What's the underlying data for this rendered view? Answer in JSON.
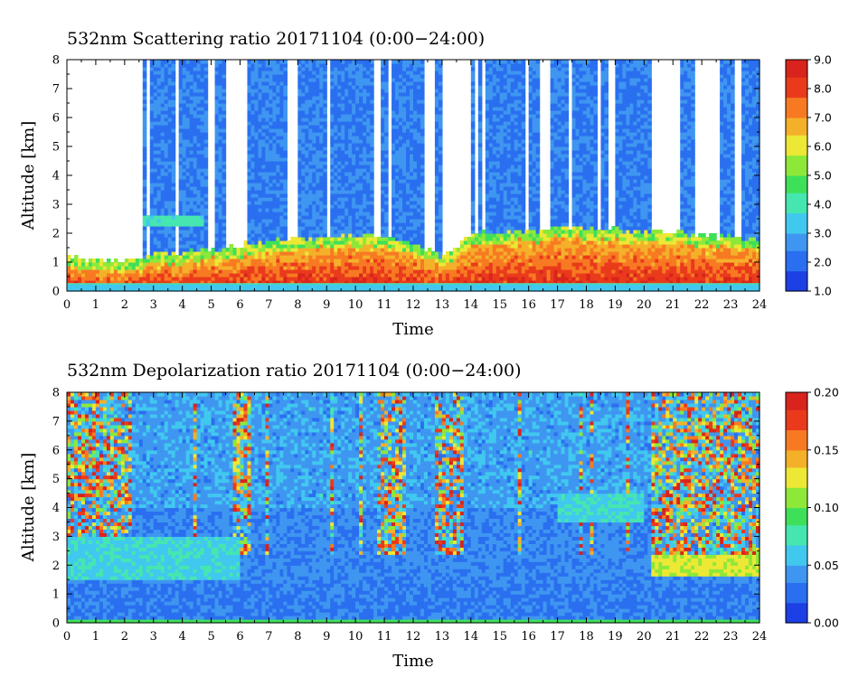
{
  "colors": {
    "background": "#ffffff",
    "frame": "#000000",
    "colormap": [
      "#1c3fe6",
      "#2a6ff0",
      "#3f96f0",
      "#41c8ef",
      "#46e6b0",
      "#3ee05a",
      "#8ee83a",
      "#ece835",
      "#f5b02a",
      "#f77a22",
      "#ea3a1c",
      "#d8241c"
    ]
  },
  "chart_data": [
    {
      "type": "heatmap",
      "title": "532nm Scattering ratio  20171104 (0:00−24:00)",
      "xlabel": "Time",
      "ylabel": "Altitude [km]",
      "xlim": [
        0,
        24
      ],
      "ylim": [
        0,
        8
      ],
      "x_ticks": [
        "0",
        "1",
        "2",
        "3",
        "4",
        "5",
        "6",
        "7",
        "8",
        "9",
        "10",
        "11",
        "12",
        "13",
        "14",
        "15",
        "16",
        "17",
        "18",
        "19",
        "20",
        "21",
        "22",
        "23",
        "24"
      ],
      "y_ticks": [
        "0",
        "1",
        "2",
        "3",
        "4",
        "5",
        "6",
        "7",
        "8"
      ],
      "colorbar": {
        "range": [
          1.0,
          9.0
        ],
        "ticks": [
          "1.0",
          "2.0",
          "3.0",
          "4.0",
          "5.0",
          "6.0",
          "7.0",
          "8.0",
          "9.0"
        ]
      },
      "features": {
        "boundary_layer_top_km": [
          [
            0,
            0.9
          ],
          [
            1,
            0.7
          ],
          [
            2,
            0.65
          ],
          [
            3,
            0.9
          ],
          [
            4,
            1.0
          ],
          [
            5,
            1.1
          ],
          [
            6,
            1.25
          ],
          [
            7,
            1.35
          ],
          [
            8,
            1.45
          ],
          [
            9,
            1.5
          ],
          [
            10,
            1.6
          ],
          [
            11,
            1.55
          ],
          [
            12,
            1.4
          ],
          [
            13,
            0.8
          ],
          [
            14,
            1.6
          ],
          [
            15,
            1.7
          ],
          [
            16,
            1.75
          ],
          [
            17,
            1.85
          ],
          [
            18,
            1.85
          ],
          [
            19,
            1.8
          ],
          [
            20,
            1.75
          ],
          [
            21,
            1.65
          ],
          [
            22,
            1.6
          ],
          [
            23,
            1.5
          ],
          [
            24,
            1.5
          ]
        ],
        "elevated_layer_km": {
          "time": [
            2.6,
            4.7
          ],
          "bottom": 2.2,
          "top": 2.6
        }
      }
    },
    {
      "type": "heatmap",
      "title": "532nm Depolarization ratio  20171104 (0:00−24:00)",
      "xlabel": "Time",
      "ylabel": "Altitude [km]",
      "xlim": [
        0,
        24
      ],
      "ylim": [
        0,
        8
      ],
      "x_ticks": [
        "0",
        "1",
        "2",
        "3",
        "4",
        "5",
        "6",
        "7",
        "8",
        "9",
        "10",
        "11",
        "12",
        "13",
        "14",
        "15",
        "16",
        "17",
        "18",
        "19",
        "20",
        "21",
        "22",
        "23",
        "24"
      ],
      "y_ticks": [
        "0",
        "1",
        "2",
        "3",
        "4",
        "5",
        "6",
        "7",
        "8"
      ],
      "colorbar": {
        "range": [
          0.0,
          0.2
        ],
        "ticks": [
          "0.00",
          "0.05",
          "0.10",
          "0.15",
          "0.20"
        ]
      },
      "features": {
        "dust_layer_km": {
          "time": [
            0,
            6
          ],
          "bottom": 1.5,
          "top": 3.0
        },
        "elevated_layer_km": {
          "time": [
            17,
            20
          ],
          "bottom": 3.5,
          "top": 4.5
        },
        "depolarizing_layer_km": {
          "time": [
            20.3,
            24
          ],
          "bottom": 1.6,
          "top": 2.4
        }
      }
    }
  ]
}
